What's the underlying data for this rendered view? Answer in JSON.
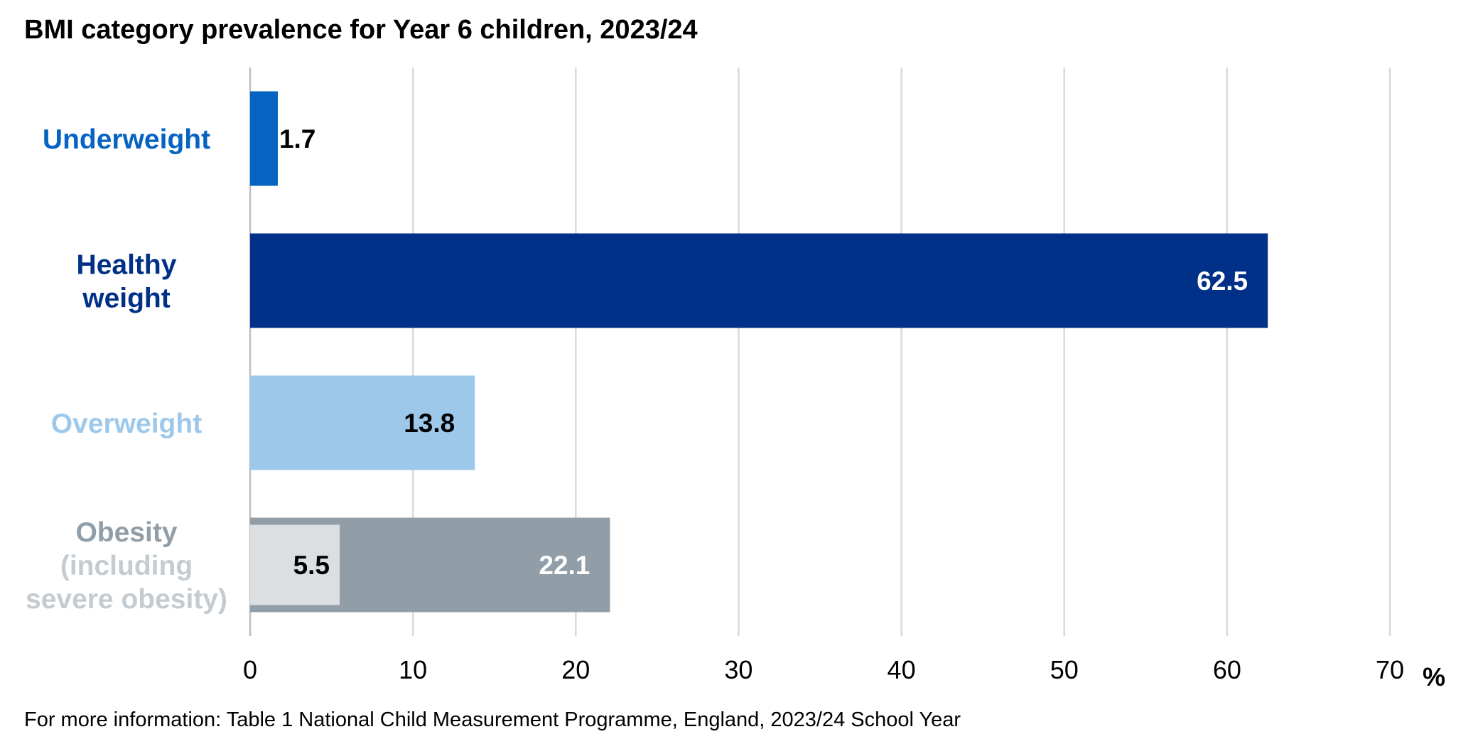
{
  "title": "BMI category prevalence for Year 6 children, 2023/24",
  "footer": "For more information: Table 1 National Child Measurement Programme, England, 2023/24 School Year",
  "chart_data": {
    "type": "bar",
    "orientation": "horizontal",
    "title": "BMI category prevalence for Year 6 children, 2023/24",
    "xlabel": "%",
    "ylabel": "",
    "xlim": [
      0,
      70
    ],
    "xticks": [
      0,
      10,
      20,
      30,
      40,
      50,
      60,
      70
    ],
    "grid": true,
    "categories": [
      {
        "lines": [
          "Underweight"
        ],
        "color": "#0563C1"
      },
      {
        "lines": [
          "Healthy",
          "weight"
        ],
        "color": "#003087"
      },
      {
        "lines": [
          "Overweight"
        ],
        "color": "#9DC8EA"
      },
      {
        "lines": [
          "Obesity",
          "(including",
          "severe obesity)"
        ],
        "line_colors": [
          "#919EA8",
          "#C4CBD1",
          "#C4CBD1"
        ]
      }
    ],
    "bars": [
      {
        "category": "Underweight",
        "value": 1.7,
        "label": "1.7",
        "color": "#0563C1",
        "label_color": "#000000",
        "label_position": "outside"
      },
      {
        "category": "Healthy weight",
        "value": 62.5,
        "label": "62.5",
        "color": "#003087",
        "label_color": "#FFFFFF",
        "label_position": "inside-end"
      },
      {
        "category": "Overweight",
        "value": 13.8,
        "label": "13.8",
        "color": "#9DC8EA",
        "label_color": "#000000",
        "label_position": "inside-end"
      },
      {
        "category": "Obesity (including severe obesity)",
        "value": 22.1,
        "label": "22.1",
        "color": "#919EA8",
        "label_color": "#FFFFFF",
        "label_position": "inside-end",
        "sub_bar": {
          "name": "severe obesity",
          "value": 5.5,
          "label": "5.5",
          "color": "#DCDFE2",
          "label_color": "#000000"
        }
      }
    ]
  }
}
